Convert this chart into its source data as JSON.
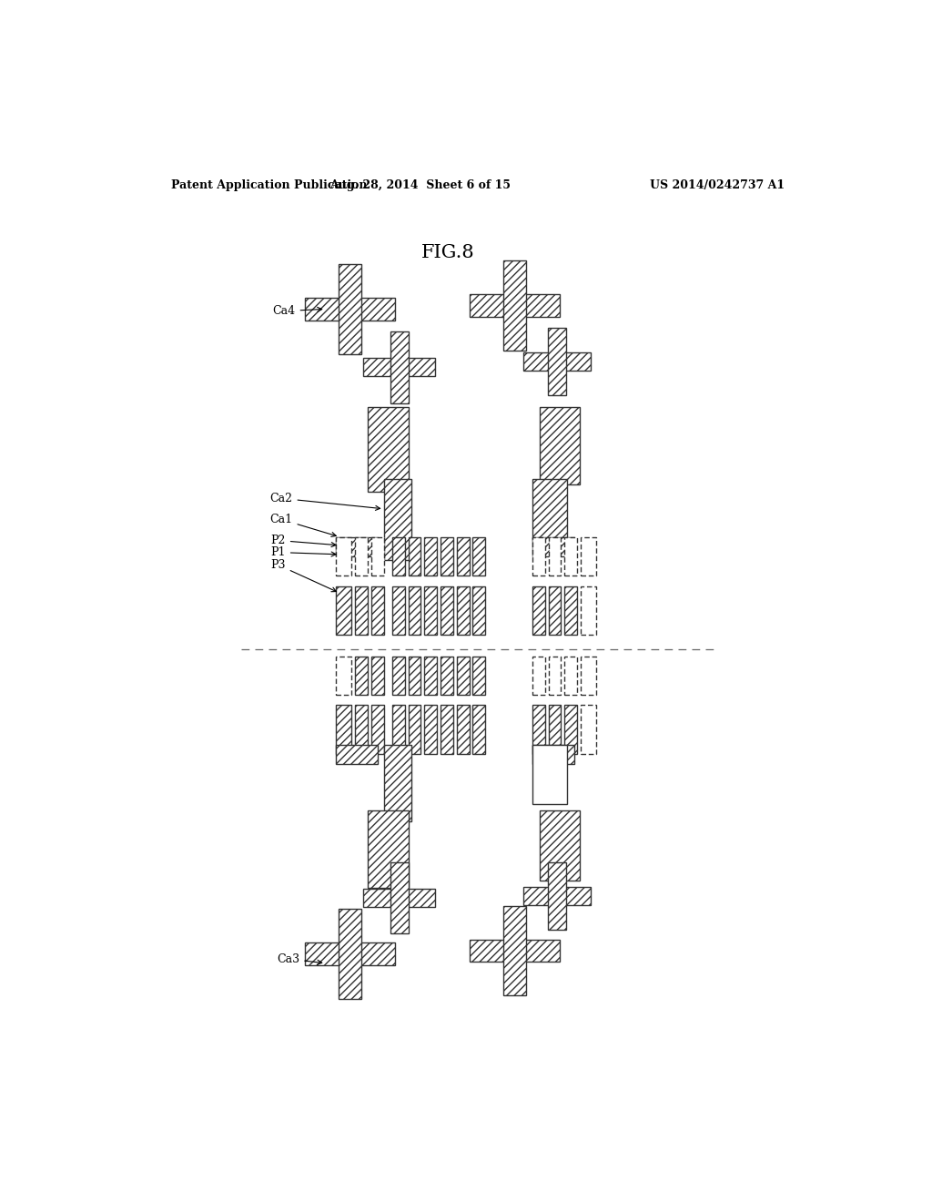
{
  "title": "FIG.8",
  "header_left": "Patent Application Publication",
  "header_center": "Aug. 28, 2014  Sheet 6 of 15",
  "header_right": "US 2014/0242737 A1",
  "bg_color": "#ffffff",
  "hatch_pattern": "////",
  "line_color": "#333333"
}
